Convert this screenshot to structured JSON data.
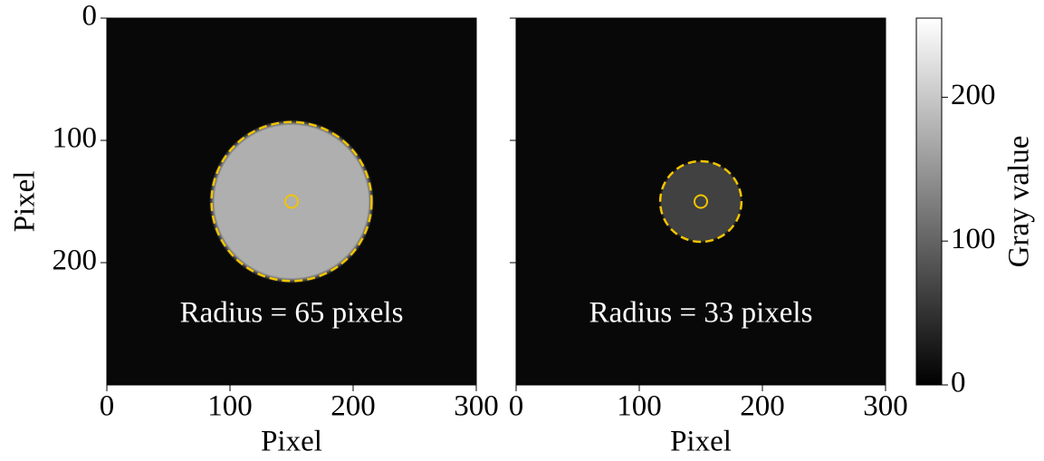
{
  "chart_data": [
    {
      "type": "image",
      "xlabel": "Pixel",
      "ylabel": "Pixel",
      "xlim": [
        0,
        300
      ],
      "xticks": [
        0,
        100,
        200,
        300
      ],
      "ylim": [
        0,
        300
      ],
      "yticks": [
        0,
        100,
        200
      ],
      "ytick_labels": true,
      "background_gray": 8,
      "disk_gray": 175,
      "circle": {
        "center": [
          150,
          150
        ],
        "radius": 65,
        "color": "#f2c400"
      },
      "annotation": "Radius = 65 pixels"
    },
    {
      "type": "image",
      "xlabel": "Pixel",
      "xlim": [
        0,
        300
      ],
      "xticks": [
        0,
        100,
        200,
        300
      ],
      "ylim": [
        0,
        300
      ],
      "yticks": [
        0,
        100,
        200
      ],
      "ytick_labels": false,
      "background_gray": 8,
      "disk_gray": 65,
      "circle": {
        "center": [
          150,
          150
        ],
        "radius": 33,
        "color": "#f2c400"
      },
      "annotation": "Radius = 33 pixels",
      "colorbar": {
        "label": "Gray value",
        "lim": [
          0,
          255
        ],
        "ticks": [
          0,
          100,
          200
        ]
      }
    }
  ]
}
